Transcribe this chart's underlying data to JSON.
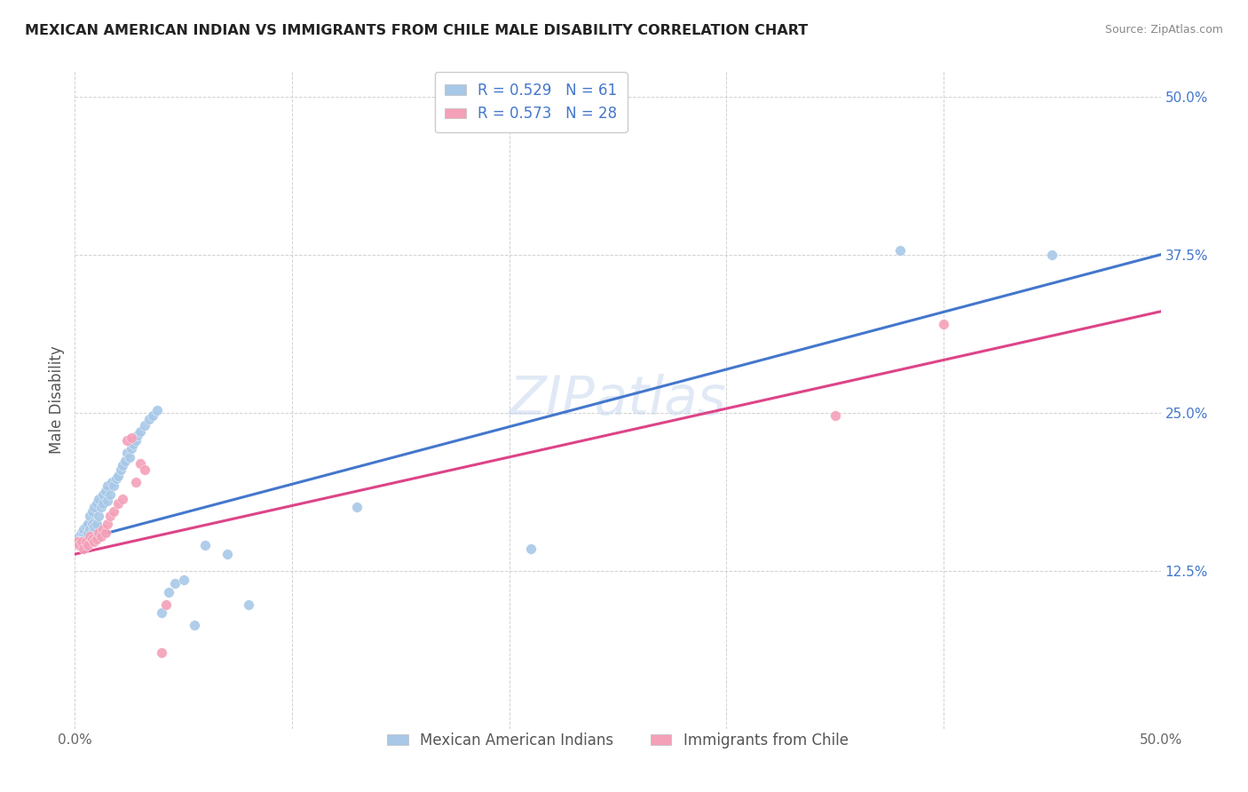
{
  "title": "MEXICAN AMERICAN INDIAN VS IMMIGRANTS FROM CHILE MALE DISABILITY CORRELATION CHART",
  "source": "Source: ZipAtlas.com",
  "ylabel": "Male Disability",
  "xlim": [
    0,
    0.5
  ],
  "ylim": [
    0,
    0.52
  ],
  "xticks": [
    0.0,
    0.1,
    0.2,
    0.3,
    0.4,
    0.5
  ],
  "xtick_labels": [
    "0.0%",
    "",
    "",
    "",
    "",
    "50.0%"
  ],
  "yticks": [
    0.125,
    0.25,
    0.375,
    0.5
  ],
  "ytick_labels": [
    "12.5%",
    "25.0%",
    "37.5%",
    "50.0%"
  ],
  "blue_R": 0.529,
  "blue_N": 61,
  "pink_R": 0.573,
  "pink_N": 28,
  "blue_color": "#a8c8e8",
  "pink_color": "#f4a0b8",
  "blue_line_color": "#4477cc",
  "pink_line_color": "#dd4488",
  "watermark": "ZIPatlas",
  "legend_label_blue": "Mexican American Indians",
  "legend_label_pink": "Immigrants from Chile",
  "blue_x": [
    0.001,
    0.002,
    0.003,
    0.003,
    0.004,
    0.004,
    0.004,
    0.005,
    0.005,
    0.005,
    0.006,
    0.006,
    0.007,
    0.007,
    0.007,
    0.008,
    0.008,
    0.008,
    0.009,
    0.009,
    0.01,
    0.01,
    0.011,
    0.011,
    0.012,
    0.013,
    0.013,
    0.014,
    0.015,
    0.015,
    0.016,
    0.017,
    0.018,
    0.019,
    0.02,
    0.021,
    0.022,
    0.023,
    0.024,
    0.025,
    0.026,
    0.027,
    0.028,
    0.029,
    0.03,
    0.032,
    0.034,
    0.036,
    0.038,
    0.04,
    0.043,
    0.046,
    0.05,
    0.055,
    0.06,
    0.07,
    0.08,
    0.13,
    0.21,
    0.38,
    0.45
  ],
  "blue_y": [
    0.148,
    0.152,
    0.148,
    0.155,
    0.15,
    0.155,
    0.158,
    0.148,
    0.152,
    0.16,
    0.155,
    0.162,
    0.15,
    0.158,
    0.168,
    0.155,
    0.162,
    0.172,
    0.16,
    0.175,
    0.162,
    0.178,
    0.168,
    0.182,
    0.175,
    0.178,
    0.185,
    0.188,
    0.18,
    0.192,
    0.185,
    0.195,
    0.192,
    0.198,
    0.2,
    0.205,
    0.208,
    0.212,
    0.218,
    0.215,
    0.222,
    0.225,
    0.228,
    0.232,
    0.235,
    0.24,
    0.245,
    0.248,
    0.252,
    0.092,
    0.108,
    0.115,
    0.118,
    0.082,
    0.145,
    0.138,
    0.098,
    0.175,
    0.142,
    0.378,
    0.375
  ],
  "pink_x": [
    0.001,
    0.002,
    0.003,
    0.004,
    0.005,
    0.006,
    0.007,
    0.008,
    0.009,
    0.01,
    0.011,
    0.012,
    0.013,
    0.014,
    0.015,
    0.016,
    0.018,
    0.02,
    0.022,
    0.024,
    0.026,
    0.028,
    0.03,
    0.032,
    0.04,
    0.042,
    0.35,
    0.4
  ],
  "pink_y": [
    0.148,
    0.145,
    0.148,
    0.142,
    0.148,
    0.145,
    0.152,
    0.15,
    0.148,
    0.15,
    0.155,
    0.152,
    0.158,
    0.155,
    0.162,
    0.168,
    0.172,
    0.178,
    0.182,
    0.228,
    0.23,
    0.195,
    0.21,
    0.205,
    0.06,
    0.098,
    0.248,
    0.32
  ],
  "blue_trend_x0": 0.0,
  "blue_trend_y0": 0.148,
  "blue_trend_x1": 0.5,
  "blue_trend_y1": 0.375,
  "pink_trend_x0": 0.0,
  "pink_trend_y0": 0.138,
  "pink_trend_x1": 0.5,
  "pink_trend_y1": 0.33
}
